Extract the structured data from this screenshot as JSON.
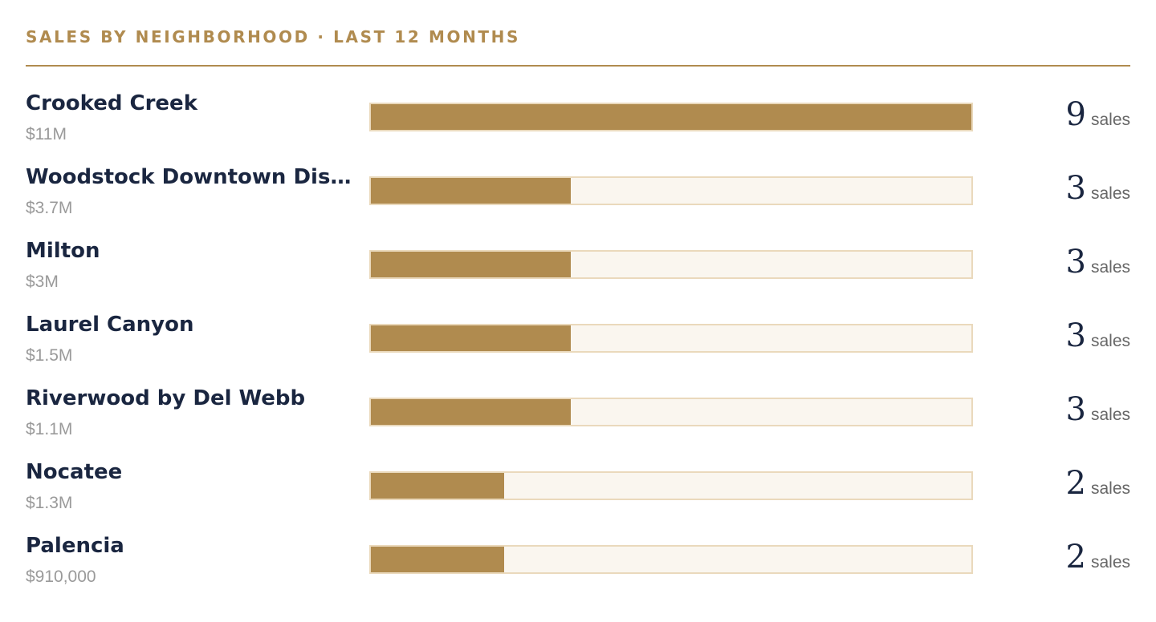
{
  "header": {
    "title": "SALES BY NEIGHBORHOOD · LAST 12 MONTHS"
  },
  "colors": {
    "accent": "#b08b4f",
    "track": "#faf6ef",
    "track_border": "#ead9bc",
    "text": "#1a2640",
    "muted": "#9a9a9a"
  },
  "chart_data": {
    "type": "bar",
    "orientation": "horizontal",
    "title": "SALES BY NEIGHBORHOOD · LAST 12 MONTHS",
    "unit": "sales",
    "max_value": 9,
    "categories": [
      "Crooked Creek",
      "Woodstock Downtown Dist...",
      "Milton",
      "Laurel Canyon",
      "Riverwood by Del Webb",
      "Nocatee",
      "Palencia"
    ],
    "values": [
      9,
      3,
      3,
      3,
      3,
      2,
      2
    ],
    "volumes": [
      "$11M",
      "$3.7M",
      "$3M",
      "$1.5M",
      "$1.1M",
      "$1.3M",
      "$910,000"
    ]
  },
  "rows": [
    {
      "name": "Crooked Creek",
      "volume": "$11M",
      "count": "9",
      "unit": "sales",
      "value": 9
    },
    {
      "name": "Woodstock Downtown Dist...",
      "volume": "$3.7M",
      "count": "3",
      "unit": "sales",
      "value": 3
    },
    {
      "name": "Milton",
      "volume": "$3M",
      "count": "3",
      "unit": "sales",
      "value": 3
    },
    {
      "name": "Laurel Canyon",
      "volume": "$1.5M",
      "count": "3",
      "unit": "sales",
      "value": 3
    },
    {
      "name": "Riverwood by Del Webb",
      "volume": "$1.1M",
      "count": "3",
      "unit": "sales",
      "value": 3
    },
    {
      "name": "Nocatee",
      "volume": "$1.3M",
      "count": "2",
      "unit": "sales",
      "value": 2
    },
    {
      "name": "Palencia",
      "volume": "$910,000",
      "count": "2",
      "unit": "sales",
      "value": 2
    }
  ]
}
